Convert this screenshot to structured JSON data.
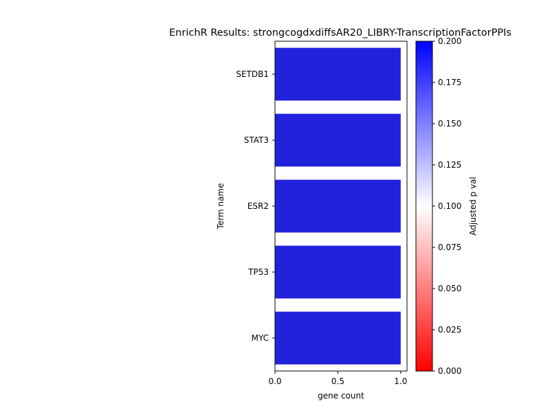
{
  "chart_data": {
    "type": "bar",
    "orientation": "horizontal",
    "title": "EnrichR Results: strongcogdxdiffsAR20_LIBRY-TranscriptionFactorPPIs",
    "xlabel": "gene count",
    "ylabel": "Term name",
    "categories": [
      "SETDB1",
      "STAT3",
      "ESR2",
      "TP53",
      "MYC"
    ],
    "values": [
      1,
      1,
      1,
      1,
      1
    ],
    "bar_color": "#2222dd",
    "xlim": [
      0,
      1.05
    ],
    "x_ticks": [
      "0.0",
      "0.5",
      "1.0"
    ],
    "x_tick_values": [
      0,
      0.5,
      1.0
    ],
    "grid": false,
    "colorbar": {
      "label": "Adjusted p val",
      "range": [
        0,
        0.2
      ],
      "colormap": "bwr_r",
      "colors": [
        "#ff0000",
        "#ffffff",
        "#0000ff"
      ],
      "tick_values": [
        0,
        0.025,
        0.05,
        0.075,
        0.1,
        0.125,
        0.15,
        0.175,
        0.2
      ],
      "ticks": [
        "0.000",
        "0.025",
        "0.050",
        "0.075",
        "0.100",
        "0.125",
        "0.150",
        "0.175",
        "0.200"
      ]
    }
  }
}
